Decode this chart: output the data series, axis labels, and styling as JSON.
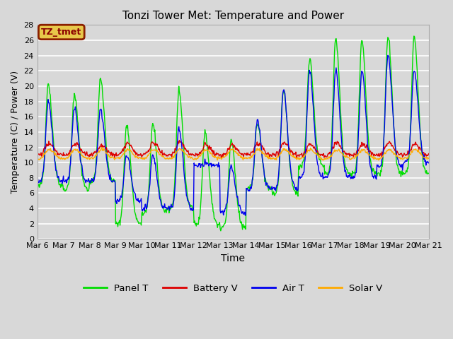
{
  "title": "Tonzi Tower Met: Temperature and Power",
  "xlabel": "Time",
  "ylabel": "Temperature (C) / Power (V)",
  "ylim": [
    0,
    28
  ],
  "background_color": "#d8d8d8",
  "plot_bg_color": "#d8d8d8",
  "grid_color": "#ffffff",
  "annotation_text": "TZ_tmet",
  "annotation_bg": "#e8c84a",
  "annotation_border": "#8b2000",
  "colors": {
    "panel_t": "#00dd00",
    "battery_v": "#dd0000",
    "air_t": "#0000ee",
    "solar_v": "#ffaa00"
  },
  "legend_labels": [
    "Panel T",
    "Battery V",
    "Air T",
    "Solar V"
  ],
  "x_tick_labels": [
    "Mar 6",
    "Mar 7",
    "Mar 8",
    "Mar 9",
    "Mar 10",
    "Mar 11",
    "Mar 12",
    "Mar 13",
    "Mar 14",
    "Mar 15",
    "Mar 16",
    "Mar 17",
    "Mar 18",
    "Mar 19",
    "Mar 20",
    "Mar 21"
  ],
  "n_days": 15,
  "pts_per_day": 48
}
